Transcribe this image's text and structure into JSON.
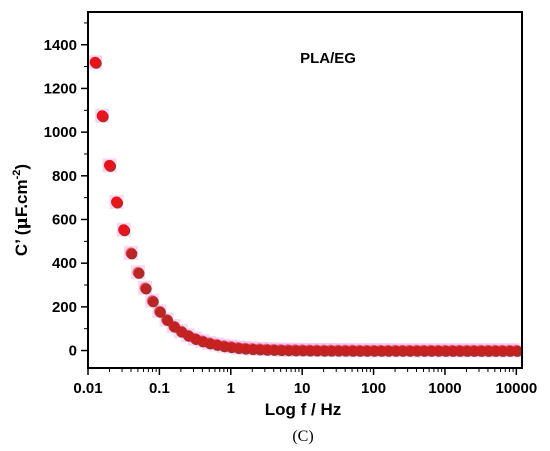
{
  "chart_data": {
    "type": "scatter",
    "title": "",
    "xlabel": "Log f / Hz",
    "ylabel_main": "C’ (",
    "ylabel_mu": "μ",
    "ylabel_unit": "F.cm",
    "ylabel_sup": "-2",
    "ylabel_close": ")",
    "annotation": "PLA/EG",
    "panel_label": "(C)",
    "x_scale": "log",
    "xlim": [
      0.01,
      12000
    ],
    "ylim": [
      -80,
      1550
    ],
    "x_ticks": [
      0.01,
      0.1,
      1,
      10,
      100,
      1000,
      10000
    ],
    "x_tick_labels": [
      "0.01",
      "0.1",
      "1",
      "10",
      "100",
      "1000",
      "10000"
    ],
    "y_ticks": [
      0,
      200,
      400,
      600,
      800,
      1000,
      1200,
      1400
    ],
    "y_tick_labels": [
      "0",
      "200",
      "400",
      "600",
      "800",
      "1000",
      "1200",
      "1400"
    ],
    "grid": false,
    "colors": {
      "front": "#e8141c",
      "back": "#8b3a2e",
      "halo": "#f4b6f0"
    },
    "series": [
      {
        "x": [
          0.0126,
          0.0158,
          0.02,
          0.0251,
          0.0316,
          0.0398,
          0.0501,
          0.0631,
          0.0794,
          0.1,
          0.126,
          0.158,
          0.2,
          0.251,
          0.316,
          0.398,
          0.501,
          0.631,
          0.794,
          1,
          1.26,
          1.58,
          2,
          2.51,
          3.16,
          3.98,
          5.01,
          6.31,
          7.94,
          10,
          12.6,
          15.8,
          20,
          25.1,
          31.6,
          39.8,
          50.1,
          63.1,
          79.4,
          100,
          126,
          158,
          200,
          251,
          316,
          398,
          501,
          631,
          794,
          1000,
          1260,
          1580,
          2000,
          2510,
          3160,
          3980,
          5010,
          6310,
          7940,
          10000
        ],
        "y": [
          1320,
          1075,
          848,
          680,
          553,
          447,
          358,
          287,
          228,
          180,
          142,
          112,
          89,
          70,
          55,
          44,
          35,
          28,
          22,
          18,
          14,
          11,
          9,
          7.5,
          6.2,
          5.2,
          4.4,
          3.8,
          3.3,
          2.9,
          2.6,
          2.3,
          2.1,
          1.9,
          1.8,
          1.7,
          1.6,
          1.5,
          1.4,
          1.4,
          1.3,
          1.3,
          1.2,
          1.2,
          1.2,
          1.1,
          1.1,
          1.1,
          1.1,
          1.0,
          1.0,
          1.0,
          1.0,
          1.0,
          1.0,
          1.0,
          1.0,
          1.0,
          1.0,
          1.0
        ]
      }
    ]
  }
}
